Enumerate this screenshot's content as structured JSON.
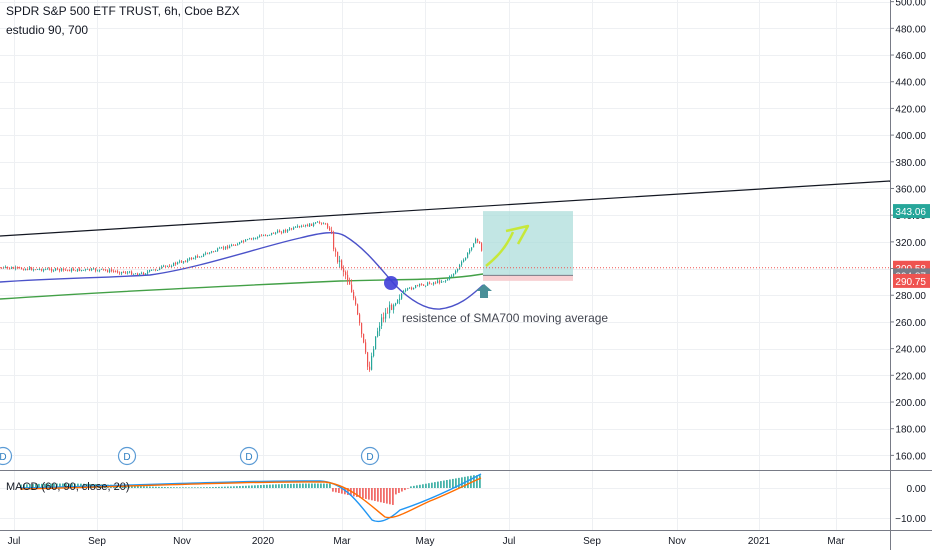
{
  "header": {
    "title": "SPDR S&P 500 ETF TRUST, 6h, Cboe BZX",
    "indicator": "estudio 90, 700"
  },
  "colors": {
    "sma_short": "#4b52c9",
    "sma_long": "#43a047",
    "trendline": "#131722",
    "candle_up": "#26a69a",
    "candle_down": "#ef5350",
    "target_zone": "#a8dcd9",
    "stop_zone": "#f7c9cb",
    "price_line": "#ef5350",
    "macd_line": "#2196f3",
    "signal_line": "#ff6d00",
    "arrow_up": "#4a8f98",
    "arrow_projection": "#c6e83a",
    "cross_marker": "#3f3fd8"
  },
  "chart_data": {
    "type": "line",
    "title": "SPDR S&P 500 ETF TRUST, 6h, Cboe BZX",
    "x_ticks": [
      "Jul",
      "Sep",
      "Nov",
      "2020",
      "Mar",
      "May",
      "Jul",
      "Sep",
      "Nov",
      "2021",
      "Mar"
    ],
    "y_ticks": [
      "500.00",
      "480.00",
      "460.00",
      "440.00",
      "420.00",
      "400.00",
      "380.00",
      "360.00",
      "340.00",
      "320.00",
      "300.00",
      "280.00",
      "260.00",
      "240.00",
      "220.00",
      "200.00",
      "180.00",
      "160.00"
    ],
    "ylim": [
      150,
      500
    ],
    "price_labels": [
      {
        "text": "343.06",
        "value": 343.06,
        "kind": "target"
      },
      {
        "text": "300.58",
        "value": 300.58,
        "kind": "last"
      },
      {
        "text": "294.87",
        "value": 294.87,
        "kind": "entry"
      },
      {
        "text": "290.75",
        "value": 290.75,
        "kind": "stop"
      }
    ],
    "dividend_markers": [
      "D",
      "D",
      "D",
      "D"
    ],
    "annotation": "resistence of  SMA700 moving average",
    "macd": {
      "label": "MACD (60, 90, close, 20)",
      "y_ticks": [
        "0.00",
        "−10.00"
      ]
    }
  }
}
